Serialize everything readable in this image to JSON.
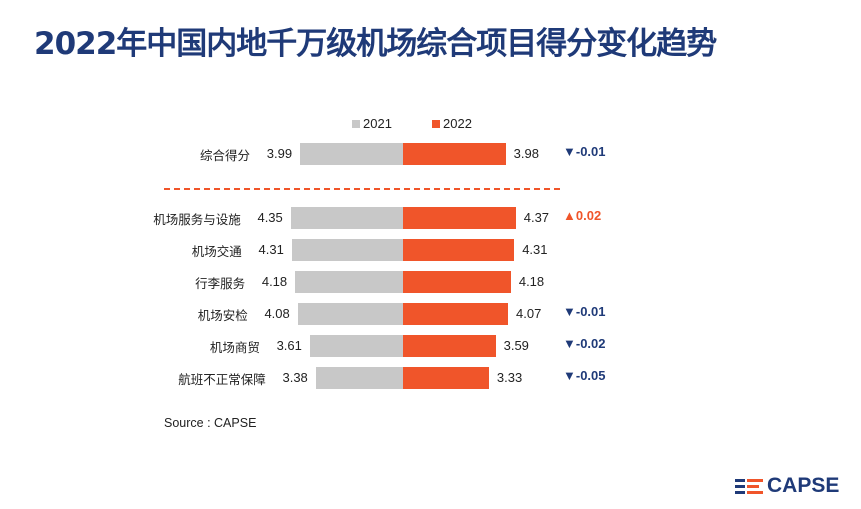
{
  "title": "2022年中国内地千万级机场综合项目得分变化趋势",
  "source": "Source : CAPSE",
  "logo_text": "CAPSE",
  "colors": {
    "y2021": "#c8c8c8",
    "y2022": "#f0552a",
    "down": "#1f3a78",
    "up": "#f0552a"
  },
  "chart_data": {
    "type": "bar",
    "title": "2022年中国内地千万级机场综合项目得分变化趋势",
    "legend": [
      "2021",
      "2022"
    ],
    "legend_position": "top",
    "categories": [
      "综合得分",
      "机场服务与设施",
      "机场交通",
      "行李服务",
      "机场安检",
      "机场商贸",
      "航班不正常保障"
    ],
    "series": [
      {
        "name": "2021",
        "values": [
          3.99,
          4.35,
          4.31,
          4.18,
          4.08,
          3.61,
          3.38
        ]
      },
      {
        "name": "2022",
        "values": [
          3.98,
          4.37,
          4.31,
          4.18,
          4.07,
          3.59,
          3.33
        ]
      }
    ],
    "changes": [
      "▼-0.01",
      "▲0.02",
      "",
      "",
      "▼-0.01",
      "▼-0.02",
      "▼-0.05"
    ],
    "xlim": [
      0,
      5
    ]
  }
}
